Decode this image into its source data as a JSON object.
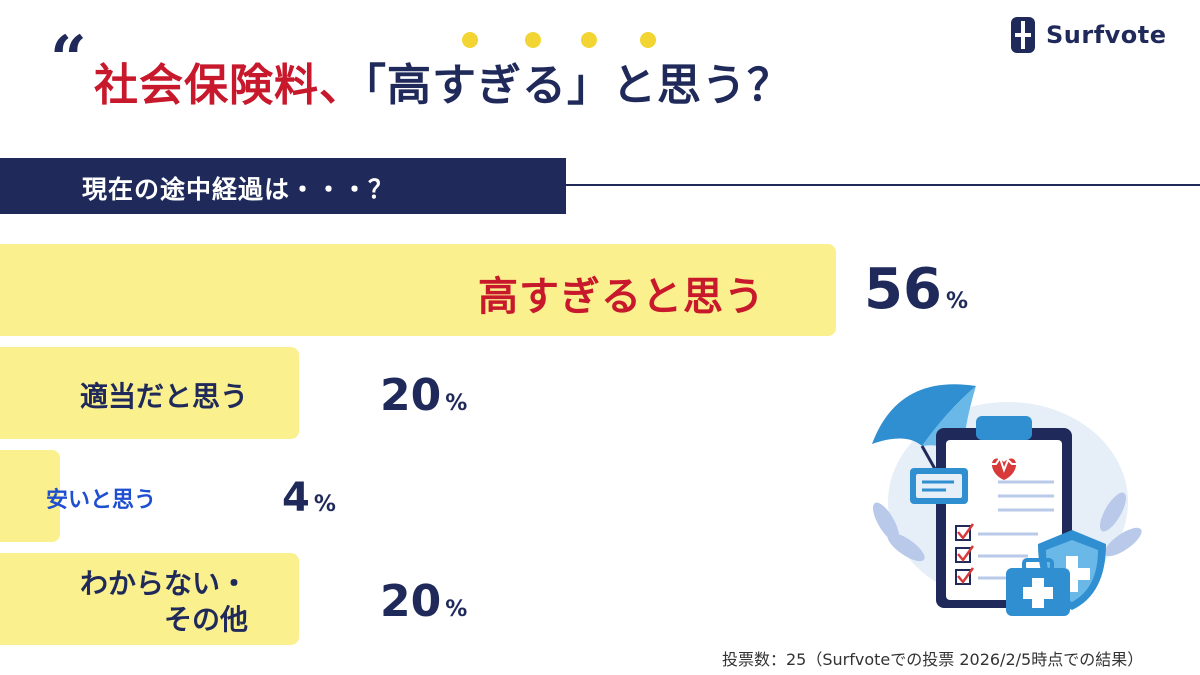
{
  "brand": {
    "name": "Surfvote"
  },
  "header": {
    "title_part1": "社会保険料、",
    "title_part2": "「高すぎる」と思う？"
  },
  "banner": {
    "text": "現在の途中経過は・・・？"
  },
  "chart_data": {
    "type": "bar",
    "orientation": "horizontal",
    "categories": [
      "高すぎると思う",
      "適当だと思う",
      "安いと思う",
      "わからない・その他"
    ],
    "values": [
      56,
      20,
      4,
      20
    ],
    "value_unit": "%",
    "xlim": [
      0,
      56
    ]
  },
  "labels": {
    "cat0": "高すぎると思う",
    "cat1": "適当だと思う",
    "cat2": "安いと思う",
    "cat3_line1": "わからない・",
    "cat3_line2": "その他"
  },
  "value_labels": {
    "v0": "56",
    "v1": "20",
    "v2": "4",
    "v3": "20",
    "pct": "%"
  },
  "footnote": "投票数：25（Surfvoteでの投票  2026/2/5時点での結果）",
  "colors": {
    "navy": "#1f2a5a",
    "red": "#c8192c",
    "bar_yellow": "#fbf08e",
    "dot_yellow": "#f2d532",
    "blue_label": "#1f4fd1"
  },
  "icons": [
    "surfvote-logo-icon",
    "umbrella-icon",
    "clipboard-icon",
    "heart-pulse-icon",
    "shield-plus-icon",
    "medical-kit-icon"
  ]
}
